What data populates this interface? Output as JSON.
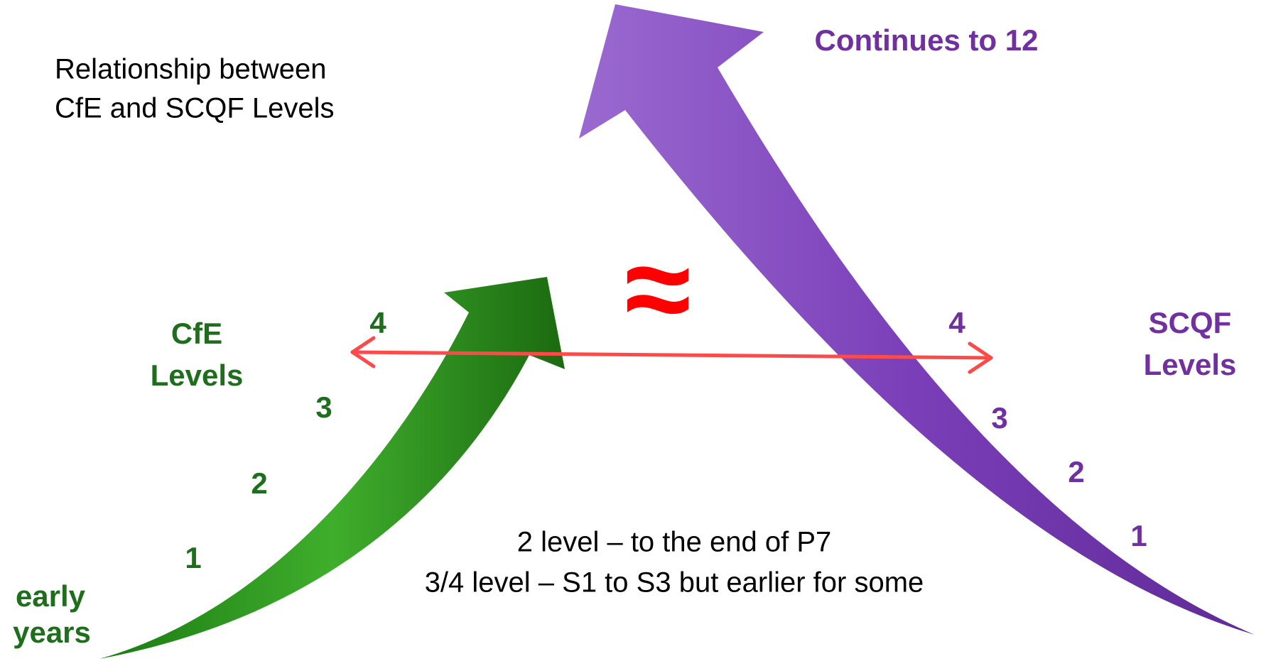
{
  "title": {
    "lines": [
      "Relationship between",
      "CfE and SCQF Levels"
    ]
  },
  "continues": "Continues to 12",
  "cfe": {
    "label": [
      "CfE",
      "Levels"
    ],
    "levels": [
      "1",
      "2",
      "3",
      "4"
    ],
    "start": [
      "early",
      "years"
    ]
  },
  "scqf": {
    "label": [
      "SCQF",
      "Levels"
    ],
    "levels": [
      "1",
      "2",
      "3",
      "4"
    ]
  },
  "approx": "≈",
  "notes": [
    "2 level – to the end of P7",
    "3/4 level – S1 to S3 but earlier for some"
  ]
}
